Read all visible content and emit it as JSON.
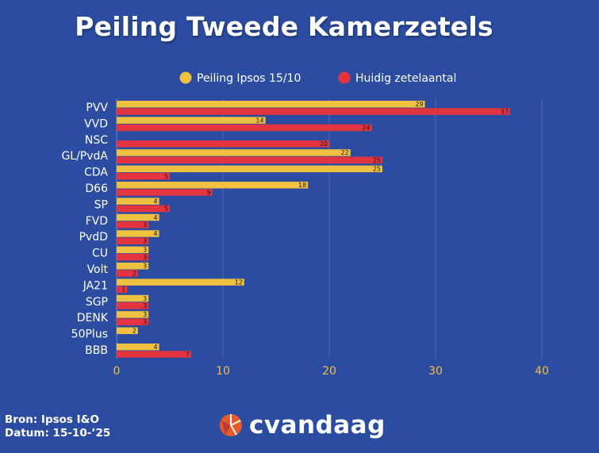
{
  "title": "Peiling Tweede Kamerzetels",
  "source": {
    "bron": "Bron: Ipsos I&O",
    "datum": "Datum: 15-10-’25"
  },
  "brand": {
    "name": "cvandaag",
    "logo_icon": "cvandaag-logo-icon"
  },
  "colors": {
    "background": "#2b4ca0",
    "poll": "#f0c040",
    "current": "#e3343f",
    "axis_text": "#f0c040"
  },
  "chart_data": {
    "type": "bar",
    "orientation": "horizontal",
    "title": "Peiling Tweede Kamerzetels",
    "categories": [
      "PVV",
      "VVD",
      "NSC",
      "GL/PvdA",
      "CDA",
      "D66",
      "SP",
      "FVD",
      "PvdD",
      "CU",
      "Volt",
      "JA21",
      "SGP",
      "DENK",
      "50Plus",
      "BBB"
    ],
    "series": [
      {
        "name": "Peiling Ipsos 15/10",
        "color": "#f0c040",
        "values": [
          29,
          14,
          null,
          22,
          25,
          18,
          4,
          4,
          4,
          3,
          3,
          12,
          3,
          3,
          2,
          4
        ]
      },
      {
        "name": "Huidig zetelaantal",
        "color": "#e3343f",
        "values": [
          37,
          24,
          20,
          25,
          5,
          9,
          5,
          3,
          3,
          3,
          2,
          1,
          3,
          3,
          null,
          7
        ]
      }
    ],
    "xlim": [
      0,
      40
    ],
    "xticks": [
      0,
      10,
      20,
      30,
      40
    ],
    "grid": true,
    "legend_position": "top"
  }
}
